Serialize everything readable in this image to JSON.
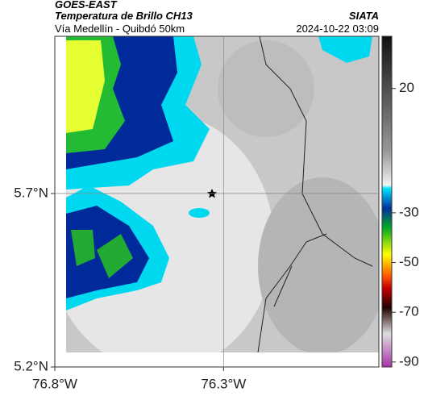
{
  "header": {
    "source": "GOES-EAST",
    "title": "Temperatura de Brillo CH13",
    "subtitle": "Vía Medellín - Quibdó 50km",
    "agency": "SIATA",
    "timestamp": "2024-10-22 03:09"
  },
  "map": {
    "lonlim": [
      -76.8,
      -75.84
    ],
    "latlim": [
      5.2,
      6.153
    ],
    "lonticks": [
      {
        "value": -76.8,
        "label": "76.8°W"
      },
      {
        "value": -76.3,
        "label": "76.3°W"
      }
    ],
    "latticks": [
      {
        "value": 5.7,
        "label": "5.7°N"
      },
      {
        "value": 5.2,
        "label": "5.2°N"
      }
    ],
    "grid": true
  },
  "colorbar": {
    "clim": [
      -92,
      41
    ],
    "ticks": [
      20,
      -30,
      -50,
      -70,
      -90
    ]
  }
}
